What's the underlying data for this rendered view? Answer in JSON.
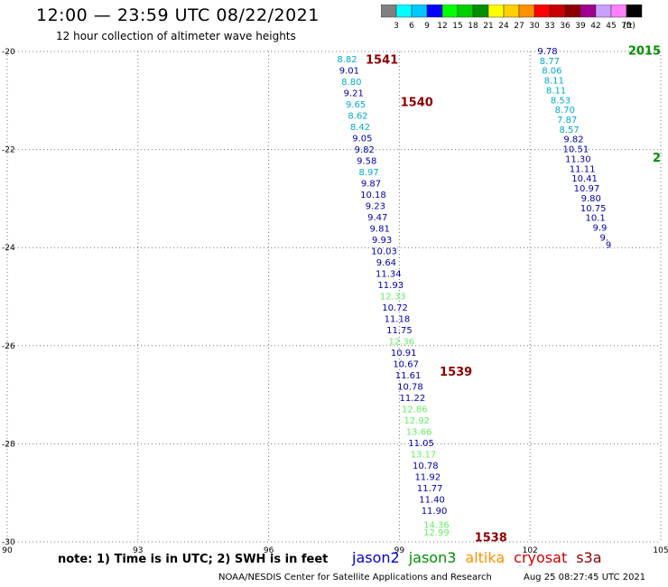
{
  "header": {
    "title": "12:00 — 23:59 UTC 08/22/2021",
    "subtitle": "12 hour collection of altimeter wave heights"
  },
  "color_scale": {
    "unit": "(ft)",
    "bins": [
      {
        "label": "",
        "color": "#808080"
      },
      {
        "label": "3",
        "color": "#00ffff"
      },
      {
        "label": "6",
        "color": "#00c8ff"
      },
      {
        "label": "9",
        "color": "#0000ff"
      },
      {
        "label": "12",
        "color": "#00ff00"
      },
      {
        "label": "15",
        "color": "#00d000"
      },
      {
        "label": "18",
        "color": "#008f00"
      },
      {
        "label": "21",
        "color": "#ffff00"
      },
      {
        "label": "24",
        "color": "#ffd000"
      },
      {
        "label": "27",
        "color": "#ff9000"
      },
      {
        "label": "30",
        "color": "#ff0000"
      },
      {
        "label": "33",
        "color": "#c80000"
      },
      {
        "label": "36",
        "color": "#8c0000"
      },
      {
        "label": "39",
        "color": "#a00090"
      },
      {
        "label": "42",
        "color": "#c8a0ff"
      },
      {
        "label": "45",
        "color": "#ff80ff"
      },
      {
        "label": "70",
        "color": "#000000"
      }
    ]
  },
  "footer": {
    "note": "note: 1) Time is in UTC; 2) SWH is in feet",
    "credit": "NOAA/NESDIS Center for Satellite Applications and Research",
    "timestamp": "Aug 25 08:27:45 UTC 2021",
    "satellites": [
      {
        "name": "jason2",
        "color": "#0000cc"
      },
      {
        "name": "jason3",
        "color": "#008f00"
      },
      {
        "name": "altika",
        "color": "#ff9000"
      },
      {
        "name": "cryosat",
        "color": "#cc0000"
      },
      {
        "name": "s3a",
        "color": "#8c0000"
      }
    ]
  },
  "chart_data": {
    "type": "scatter",
    "xlim": [
      90,
      105
    ],
    "ylim": [
      -30,
      -20
    ],
    "x_ticks": [
      "90",
      "93",
      "96",
      "99",
      "102",
      "105"
    ],
    "y_ticks": [
      "-20",
      "-22",
      "-24",
      "-26",
      "-28",
      "-30"
    ],
    "grid": true,
    "point_colors": {
      "cyan": "#00aacc",
      "blue": "#0000aa",
      "green": "#66ee66"
    },
    "track_labels": [
      {
        "text": "1541",
        "x": 98.6,
        "y": -20.18,
        "color": "#8c0000"
      },
      {
        "text": "1540",
        "x": 99.4,
        "y": -21.05,
        "color": "#8c0000"
      },
      {
        "text": "1539",
        "x": 100.3,
        "y": -26.55,
        "color": "#8c0000"
      },
      {
        "text": "1538",
        "x": 101.1,
        "y": -29.93,
        "color": "#8c0000"
      },
      {
        "text": "2015",
        "x": 105.0,
        "y": -20.0,
        "color": "#008f00"
      },
      {
        "text": "2",
        "x": 105.0,
        "y": -22.18,
        "color": "#008f00"
      }
    ],
    "series": [
      {
        "track": "1541/1540/1539/1538",
        "points": [
          {
            "x": 97.8,
            "y": -20.17,
            "v": "8.82",
            "c": "cyan"
          },
          {
            "x": 97.85,
            "y": -20.4,
            "v": "9.01",
            "c": "blue"
          },
          {
            "x": 97.9,
            "y": -20.63,
            "v": "8.80",
            "c": "cyan"
          },
          {
            "x": 97.95,
            "y": -20.86,
            "v": "9.21",
            "c": "blue"
          },
          {
            "x": 98.0,
            "y": -21.09,
            "v": "9.65",
            "c": "cyan"
          },
          {
            "x": 98.05,
            "y": -21.32,
            "v": "8.62",
            "c": "cyan"
          },
          {
            "x": 98.1,
            "y": -21.55,
            "v": "8.42",
            "c": "cyan"
          },
          {
            "x": 98.15,
            "y": -21.78,
            "v": "9.05",
            "c": "blue"
          },
          {
            "x": 98.2,
            "y": -22.01,
            "v": "9.82",
            "c": "blue"
          },
          {
            "x": 98.25,
            "y": -22.24,
            "v": "9.58",
            "c": "blue"
          },
          {
            "x": 98.3,
            "y": -22.47,
            "v": "8.97",
            "c": "cyan"
          },
          {
            "x": 98.35,
            "y": -22.7,
            "v": "9.87",
            "c": "blue"
          },
          {
            "x": 98.4,
            "y": -22.93,
            "v": "10.18",
            "c": "blue"
          },
          {
            "x": 98.45,
            "y": -23.16,
            "v": "9.23",
            "c": "blue"
          },
          {
            "x": 98.5,
            "y": -23.39,
            "v": "9.47",
            "c": "blue"
          },
          {
            "x": 98.55,
            "y": -23.62,
            "v": "9.81",
            "c": "blue"
          },
          {
            "x": 98.6,
            "y": -23.85,
            "v": "9.93",
            "c": "blue"
          },
          {
            "x": 98.65,
            "y": -24.08,
            "v": "10.03",
            "c": "blue"
          },
          {
            "x": 98.7,
            "y": -24.31,
            "v": "9.64",
            "c": "blue"
          },
          {
            "x": 98.75,
            "y": -24.54,
            "v": "11.34",
            "c": "blue"
          },
          {
            "x": 98.8,
            "y": -24.77,
            "v": "11.93",
            "c": "blue"
          },
          {
            "x": 98.85,
            "y": -25.0,
            "v": "12.33",
            "c": "green"
          },
          {
            "x": 98.9,
            "y": -25.23,
            "v": "10.72",
            "c": "blue"
          },
          {
            "x": 98.95,
            "y": -25.46,
            "v": "11.18",
            "c": "blue"
          },
          {
            "x": 99.0,
            "y": -25.69,
            "v": "11.75",
            "c": "blue"
          },
          {
            "x": 99.05,
            "y": -25.92,
            "v": "12.36",
            "c": "green"
          },
          {
            "x": 99.1,
            "y": -26.15,
            "v": "10.91",
            "c": "blue"
          },
          {
            "x": 99.15,
            "y": -26.38,
            "v": "10.67",
            "c": "blue"
          },
          {
            "x": 99.2,
            "y": -26.61,
            "v": "11.61",
            "c": "blue"
          },
          {
            "x": 99.25,
            "y": -26.84,
            "v": "10.78",
            "c": "blue"
          },
          {
            "x": 99.3,
            "y": -27.07,
            "v": "11.22",
            "c": "blue"
          },
          {
            "x": 99.35,
            "y": -27.3,
            "v": "12.86",
            "c": "green"
          },
          {
            "x": 99.4,
            "y": -27.53,
            "v": "12.92",
            "c": "green"
          },
          {
            "x": 99.45,
            "y": -27.76,
            "v": "13.66",
            "c": "green"
          },
          {
            "x": 99.5,
            "y": -27.99,
            "v": "11.05",
            "c": "blue"
          },
          {
            "x": 99.55,
            "y": -28.22,
            "v": "13.17",
            "c": "green"
          },
          {
            "x": 99.6,
            "y": -28.45,
            "v": "10.78",
            "c": "blue"
          },
          {
            "x": 99.65,
            "y": -28.68,
            "v": "11.92",
            "c": "blue"
          },
          {
            "x": 99.7,
            "y": -28.91,
            "v": "11.77",
            "c": "blue"
          },
          {
            "x": 99.75,
            "y": -29.14,
            "v": "11.40",
            "c": "blue"
          },
          {
            "x": 99.8,
            "y": -29.37,
            "v": "11.90",
            "c": "blue"
          },
          {
            "x": 99.85,
            "y": -29.66,
            "v": "14.36",
            "c": "green"
          },
          {
            "x": 99.85,
            "y": -29.82,
            "v": "12.99",
            "c": "green"
          }
        ]
      },
      {
        "track": "2015",
        "points": [
          {
            "x": 102.4,
            "y": -20.0,
            "v": "9.78",
            "c": "blue"
          },
          {
            "x": 102.45,
            "y": -20.2,
            "v": "8.77",
            "c": "cyan"
          },
          {
            "x": 102.5,
            "y": -20.4,
            "v": "8.06",
            "c": "cyan"
          },
          {
            "x": 102.55,
            "y": -20.6,
            "v": "8.11",
            "c": "cyan"
          },
          {
            "x": 102.6,
            "y": -20.8,
            "v": "8.11",
            "c": "cyan"
          },
          {
            "x": 102.7,
            "y": -21.0,
            "v": "8.53",
            "c": "cyan"
          },
          {
            "x": 102.8,
            "y": -21.2,
            "v": "8.70",
            "c": "cyan"
          },
          {
            "x": 102.85,
            "y": -21.4,
            "v": "7.87",
            "c": "cyan"
          },
          {
            "x": 102.9,
            "y": -21.6,
            "v": "8.57",
            "c": "cyan"
          },
          {
            "x": 103.0,
            "y": -21.8,
            "v": "9.82",
            "c": "blue"
          },
          {
            "x": 103.05,
            "y": -22.0,
            "v": "10.51",
            "c": "blue"
          },
          {
            "x": 103.1,
            "y": -22.2,
            "v": "11.30",
            "c": "blue"
          },
          {
            "x": 103.2,
            "y": -22.4,
            "v": "11.11",
            "c": "blue"
          },
          {
            "x": 103.25,
            "y": -22.6,
            "v": "10.41",
            "c": "blue"
          },
          {
            "x": 103.3,
            "y": -22.8,
            "v": "10.97",
            "c": "blue"
          },
          {
            "x": 103.4,
            "y": -23.0,
            "v": "9.80",
            "c": "blue"
          },
          {
            "x": 103.45,
            "y": -23.2,
            "v": "10.75",
            "c": "blue"
          },
          {
            "x": 103.5,
            "y": -23.4,
            "v": "10.1",
            "c": "blue"
          },
          {
            "x": 103.6,
            "y": -23.6,
            "v": "9.9",
            "c": "blue"
          },
          {
            "x": 103.7,
            "y": -23.8,
            "v": "9.",
            "c": "blue"
          },
          {
            "x": 103.8,
            "y": -23.95,
            "v": "9",
            "c": "blue"
          }
        ]
      }
    ]
  }
}
